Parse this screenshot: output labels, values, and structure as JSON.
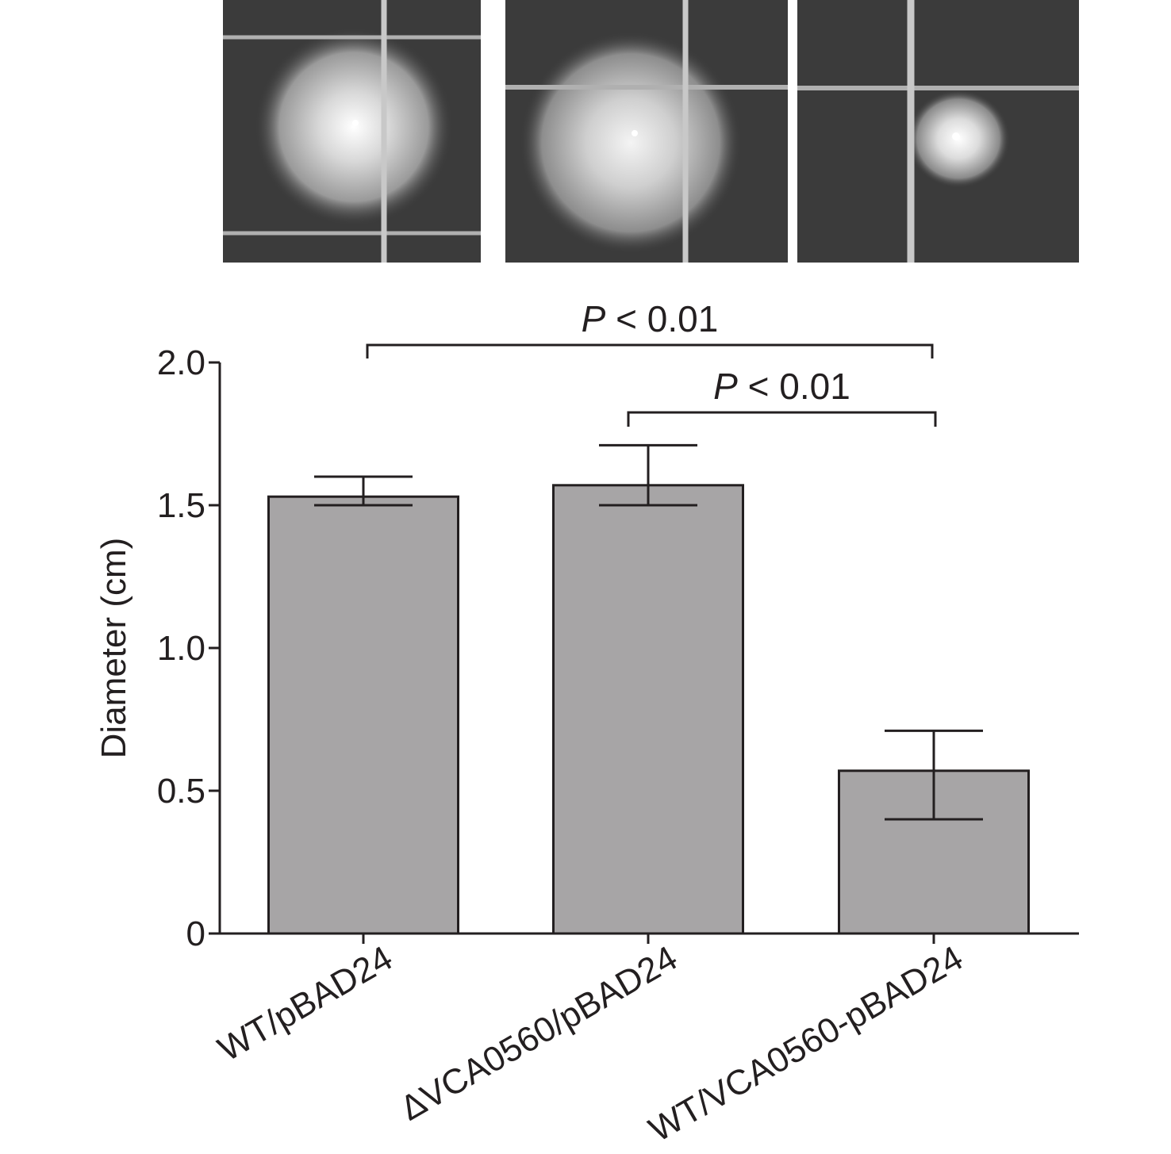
{
  "chart_data": {
    "type": "bar",
    "ylabel": "Diameter (cm)",
    "xlabel": "",
    "ylim": [
      0,
      2.0
    ],
    "yticks": [
      0,
      0.5,
      1.0,
      1.5,
      2.0
    ],
    "ytick_labels": [
      "0",
      "0.5",
      "1.0",
      "1.5",
      "2.0"
    ],
    "categories": [
      "WT/pBAD24",
      "ΔVCA0560/pBAD24",
      "WT/VCA0560-pBAD24"
    ],
    "values": [
      1.53,
      1.57,
      0.57
    ],
    "error_upper": [
      1.6,
      1.71,
      0.71
    ],
    "error_lower": [
      1.5,
      1.5,
      0.4
    ],
    "bar_color": "#a7a5a6",
    "grid": false,
    "significance": [
      {
        "from": 0,
        "to": 2,
        "p_italic": "P",
        "label": " < 0.01"
      },
      {
        "from": 1,
        "to": 2,
        "p_italic": "P",
        "label": " < 0.01"
      }
    ]
  },
  "photos": [
    {
      "name": "swim-plate-wt-pbad24",
      "halo": "large"
    },
    {
      "name": "swim-plate-dvca0560-pbad24",
      "halo": "large"
    },
    {
      "name": "swim-plate-wt-vca0560-pbad24",
      "halo": "small"
    }
  ]
}
